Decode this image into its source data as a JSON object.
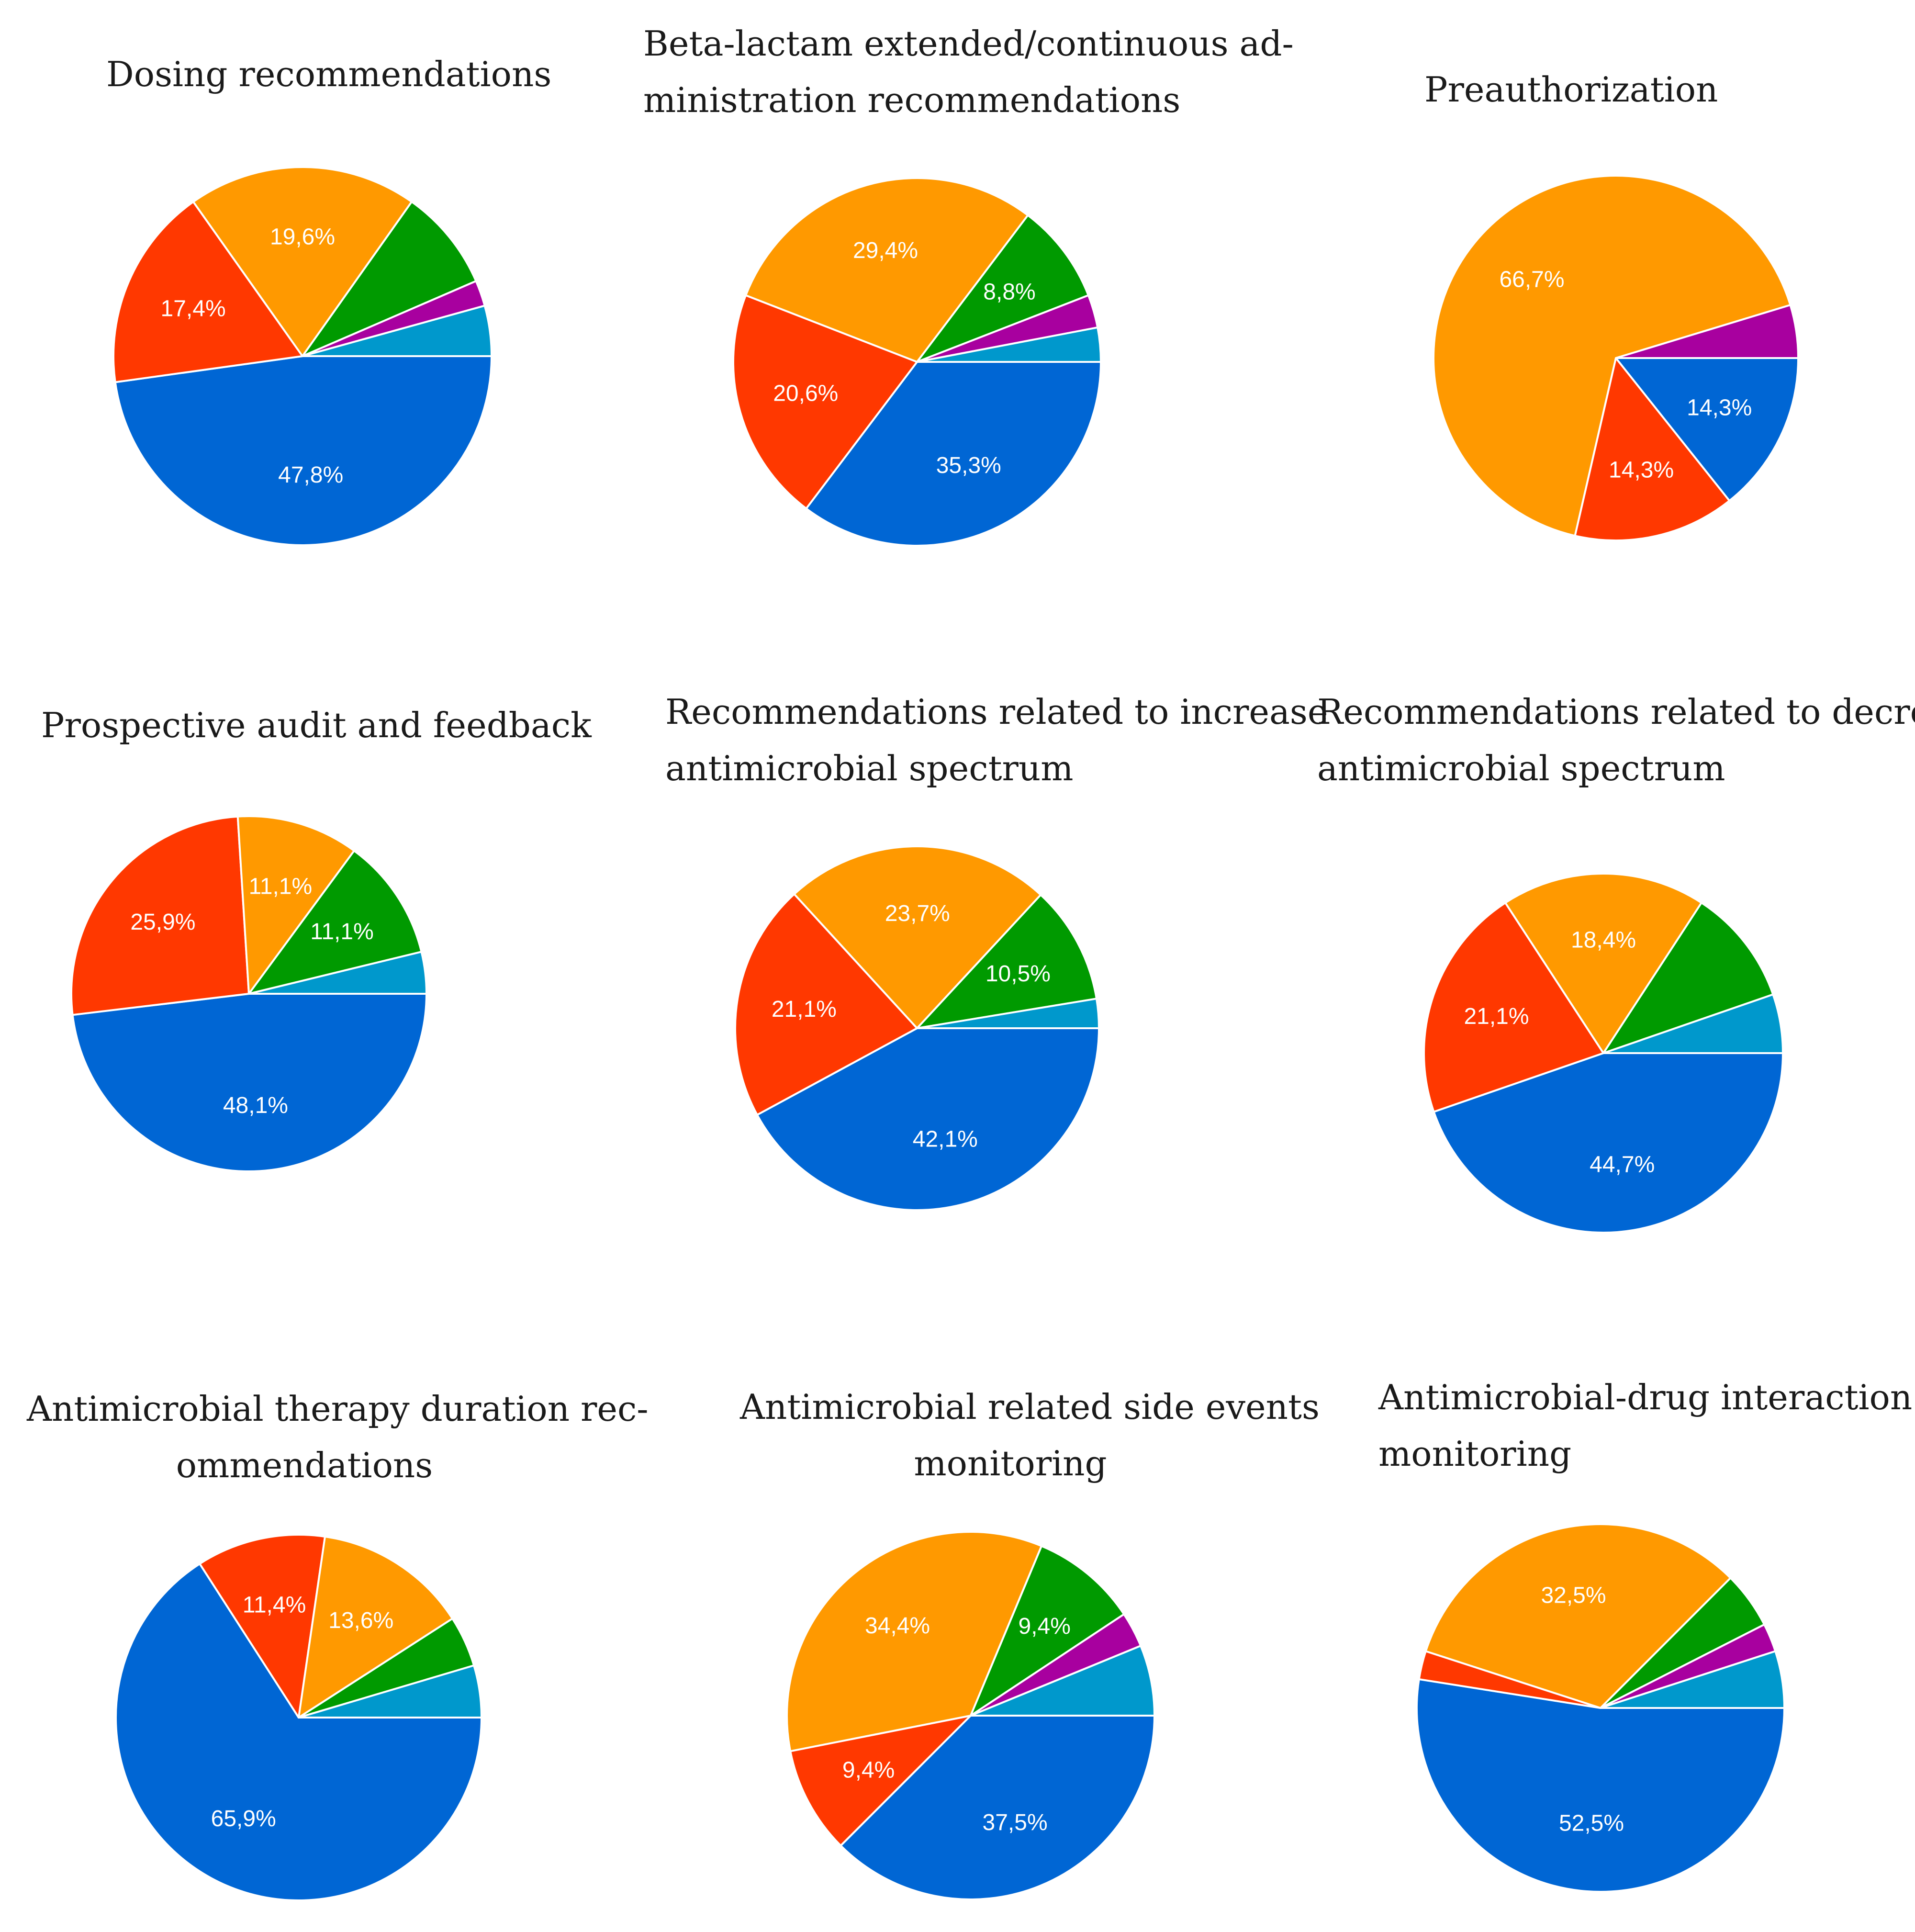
{
  "colors": {
    "Blue": "#0066d4",
    "Red": "#ff3800",
    "Orange": "#ff9900",
    "Green": "#009a00",
    "Purple": "#a8009f",
    "Cyan": "#0098cc"
  },
  "chart_data": [
    {
      "type": "pie",
      "title": "Dosing recommendations",
      "title_lines": [
        "Dosing recommendations"
      ],
      "slices": [
        {
          "color": "Blue",
          "value": 47.8,
          "label": "47,8%"
        },
        {
          "color": "Red",
          "value": 17.4,
          "label": "17,4%"
        },
        {
          "color": "Orange",
          "value": 19.6,
          "label": "19,6%"
        },
        {
          "color": "Green",
          "value": 8.7,
          "label": ""
        },
        {
          "color": "Purple",
          "value": 2.2,
          "label": ""
        },
        {
          "color": "Cyan",
          "value": 4.3,
          "label": ""
        }
      ]
    },
    {
      "type": "pie",
      "title": "Beta-lactam extended/continuous administration recommendations",
      "title_lines": [
        "Beta-lactam extended/continuous ad-",
        "ministration recommendations"
      ],
      "slices": [
        {
          "color": "Blue",
          "value": 35.3,
          "label": "35,3%"
        },
        {
          "color": "Red",
          "value": 20.6,
          "label": "20,6%"
        },
        {
          "color": "Orange",
          "value": 29.4,
          "label": "29,4%"
        },
        {
          "color": "Green",
          "value": 8.8,
          "label": "8,8%"
        },
        {
          "color": "Purple",
          "value": 2.9,
          "label": ""
        },
        {
          "color": "Cyan",
          "value": 3.0,
          "label": ""
        }
      ]
    },
    {
      "type": "pie",
      "title": "Preauthorization",
      "title_lines": [
        "Preauthorization"
      ],
      "slices": [
        {
          "color": "Blue",
          "value": 14.3,
          "label": "14,3%"
        },
        {
          "color": "Red",
          "value": 14.3,
          "label": "14,3%"
        },
        {
          "color": "Orange",
          "value": 66.7,
          "label": "66,7%"
        },
        {
          "color": "Purple",
          "value": 4.7,
          "label": ""
        }
      ]
    },
    {
      "type": "pie",
      "title": "Prospective audit and feedback",
      "title_lines": [
        "Prospective audit and feedback"
      ],
      "slices": [
        {
          "color": "Blue",
          "value": 48.1,
          "label": "48,1%"
        },
        {
          "color": "Red",
          "value": 25.9,
          "label": "25,9%"
        },
        {
          "color": "Orange",
          "value": 11.1,
          "label": "11,1%"
        },
        {
          "color": "Green",
          "value": 11.1,
          "label": "11,1%"
        },
        {
          "color": "Cyan",
          "value": 3.8,
          "label": ""
        }
      ]
    },
    {
      "type": "pie",
      "title": "Recommendations related to increase antimicrobial spectrum",
      "title_lines": [
        "Recommendations related to increase",
        "antimicrobial spectrum"
      ],
      "slices": [
        {
          "color": "Blue",
          "value": 42.1,
          "label": "42,1%"
        },
        {
          "color": "Red",
          "value": 21.1,
          "label": "21,1%"
        },
        {
          "color": "Orange",
          "value": 23.7,
          "label": "23,7%"
        },
        {
          "color": "Green",
          "value": 10.5,
          "label": "10,5%"
        },
        {
          "color": "Cyan",
          "value": 2.6,
          "label": ""
        }
      ]
    },
    {
      "type": "pie",
      "title": "Recommendations related to decrease antimicrobial spectrum",
      "title_lines": [
        "Recommendations related to decrease",
        "antimicrobial spectrum"
      ],
      "slices": [
        {
          "color": "Blue",
          "value": 44.7,
          "label": "44,7%"
        },
        {
          "color": "Red",
          "value": 21.1,
          "label": "21,1%"
        },
        {
          "color": "Orange",
          "value": 18.4,
          "label": "18,4%"
        },
        {
          "color": "Green",
          "value": 10.5,
          "label": ""
        },
        {
          "color": "Cyan",
          "value": 5.3,
          "label": ""
        }
      ]
    },
    {
      "type": "pie",
      "title": "Antimicrobial therapy duration recommendations",
      "title_lines": [
        "Antimicrobial therapy duration rec-",
        "ommendations"
      ],
      "slices": [
        {
          "color": "Blue",
          "value": 65.9,
          "label": "65,9%"
        },
        {
          "color": "Red",
          "value": 11.4,
          "label": "11,4%"
        },
        {
          "color": "Orange",
          "value": 13.6,
          "label": "13,6%"
        },
        {
          "color": "Green",
          "value": 4.5,
          "label": ""
        },
        {
          "color": "Cyan",
          "value": 4.6,
          "label": ""
        }
      ]
    },
    {
      "type": "pie",
      "title": "Antimicrobial related side events monitoring",
      "title_lines": [
        "Antimicrobial related side events",
        "monitoring"
      ],
      "slices": [
        {
          "color": "Blue",
          "value": 37.5,
          "label": "37,5%"
        },
        {
          "color": "Red",
          "value": 9.4,
          "label": "9,4%"
        },
        {
          "color": "Orange",
          "value": 34.4,
          "label": "34,4%"
        },
        {
          "color": "Green",
          "value": 9.4,
          "label": "9,4%"
        },
        {
          "color": "Purple",
          "value": 3.1,
          "label": ""
        },
        {
          "color": "Cyan",
          "value": 6.2,
          "label": ""
        }
      ]
    },
    {
      "type": "pie",
      "title": "Antimicrobial-drug interaction monitoring",
      "title_lines": [
        "Antimicrobial-drug interaction",
        "monitoring"
      ],
      "slices": [
        {
          "color": "Blue",
          "value": 52.5,
          "label": "52,5%"
        },
        {
          "color": "Red",
          "value": 2.5,
          "label": ""
        },
        {
          "color": "Orange",
          "value": 32.5,
          "label": "32,5%"
        },
        {
          "color": "Green",
          "value": 5.0,
          "label": ""
        },
        {
          "color": "Purple",
          "value": 2.5,
          "label": ""
        },
        {
          "color": "Cyan",
          "value": 5.0,
          "label": ""
        }
      ]
    }
  ]
}
